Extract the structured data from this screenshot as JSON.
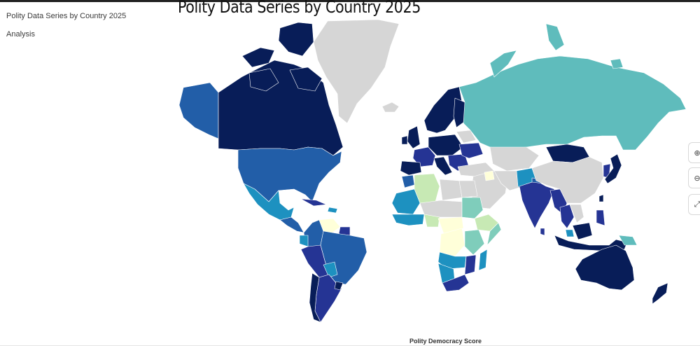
{
  "sidebar": {
    "items": [
      {
        "label": "Polity Data Series by Country 2025"
      },
      {
        "label": "Analysis"
      }
    ]
  },
  "map": {
    "title": "Polity Data Series by Country 2025",
    "legend_title": "Polity Democracy Score",
    "colors": {
      "very_high": "#081d58",
      "high": "#253494",
      "medium_high": "#225ea8",
      "medium": "#1d91c0",
      "teal": "#5fbcbc",
      "low": "#7fcdbb",
      "very_low": "#c7e9b4",
      "lowest": "#ffffd9",
      "no_data": "#d6d6d6"
    }
  },
  "controls": {
    "zoom_in_icon": "plus-circle-icon",
    "zoom_out_icon": "minus-circle-icon",
    "fullscreen_icon": "expand-icon"
  }
}
